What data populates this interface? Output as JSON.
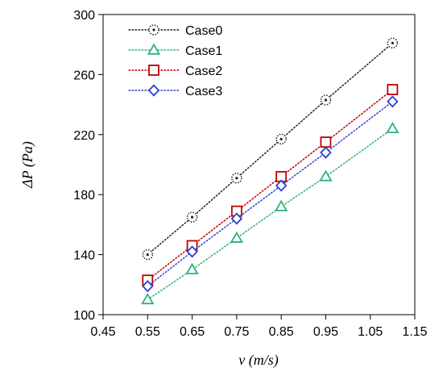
{
  "chart_data": {
    "type": "scatter",
    "xlabel": "v (m/s)",
    "ylabel": "ΔP (Pa)",
    "xlim": [
      0.45,
      1.15
    ],
    "ylim": [
      100,
      300
    ],
    "xticks": [
      "0.45",
      "0.55",
      "0.65",
      "0.75",
      "0.85",
      "0.95",
      "1.05",
      "1.15"
    ],
    "yticks": [
      "100",
      "140",
      "180",
      "220",
      "260",
      "300"
    ],
    "grid": false,
    "legend_position": "top-left",
    "x": [
      0.55,
      0.65,
      0.75,
      0.85,
      0.95,
      1.1
    ],
    "series": [
      {
        "name": "Case0",
        "marker": "circle-dotted",
        "color": "#222222",
        "values": [
          140,
          165,
          191,
          217,
          243,
          281
        ]
      },
      {
        "name": "Case1",
        "marker": "triangle",
        "color": "#2db37a",
        "values": [
          110,
          130,
          151,
          172,
          192,
          224
        ]
      },
      {
        "name": "Case2",
        "marker": "square",
        "color": "#c00000",
        "values": [
          123,
          146,
          169,
          192,
          215,
          250
        ]
      },
      {
        "name": "Case3",
        "marker": "diamond",
        "color": "#2f3fd0",
        "values": [
          119,
          142,
          164,
          186,
          208,
          242
        ]
      }
    ]
  }
}
